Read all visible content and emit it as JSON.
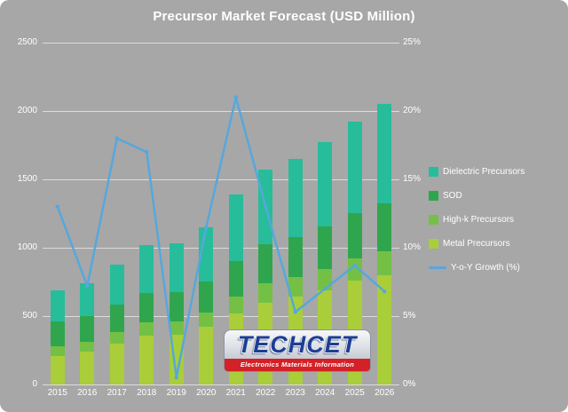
{
  "chart_data": {
    "type": "bar",
    "subtype": "stacked-column-with-line",
    "title": "Precursor Market Forecast (USD Million)",
    "categories": [
      "2015",
      "2016",
      "2017",
      "2018",
      "2019",
      "2020",
      "2021",
      "2022",
      "2023",
      "2024",
      "2025",
      "2026"
    ],
    "series": [
      {
        "name": "Metal Precursors",
        "color": "#a9ce39",
        "values": [
          210,
          240,
          300,
          360,
          365,
          420,
          520,
          600,
          640,
          690,
          760,
          800
        ]
      },
      {
        "name": "High-k Precursors",
        "color": "#74c044",
        "values": [
          70,
          75,
          85,
          95,
          95,
          105,
          125,
          140,
          145,
          155,
          165,
          175
        ]
      },
      {
        "name": "SOD",
        "color": "#2fa64e",
        "values": [
          180,
          185,
          200,
          215,
          215,
          230,
          260,
          285,
          295,
          310,
          330,
          350
        ]
      },
      {
        "name": "Dielectric Precursors",
        "color": "#27bd9b",
        "values": [
          230,
          240,
          295,
          350,
          355,
          395,
          485,
          545,
          570,
          615,
          665,
          725
        ]
      }
    ],
    "line": {
      "name": "Y-o-Y Growth (%)",
      "color": "#57a7dc",
      "values": [
        13,
        7.2,
        18,
        17,
        0.5,
        11.5,
        21,
        13,
        5.3,
        7,
        8.7,
        6.8
      ]
    },
    "left_axis": {
      "min": 0,
      "max": 2500,
      "ticks": [
        {
          "v": 0,
          "label": "0"
        },
        {
          "v": 500,
          "label": "500"
        },
        {
          "v": 1000,
          "label": "1000"
        },
        {
          "v": 1500,
          "label": "1500"
        },
        {
          "v": 2000,
          "label": "2000"
        },
        {
          "v": 2500,
          "label": "2500"
        }
      ]
    },
    "right_axis": {
      "min": 0,
      "max": 25,
      "ticks": [
        {
          "v": 0,
          "label": "0%"
        },
        {
          "v": 5,
          "label": "5%"
        },
        {
          "v": 10,
          "label": "10%"
        },
        {
          "v": 15,
          "label": "15%"
        },
        {
          "v": 20,
          "label": "20%"
        },
        {
          "v": 25,
          "label": "25%"
        }
      ]
    },
    "legend": [
      {
        "label": "Dielectric Precursors",
        "color": "#27bd9b",
        "type": "swatch"
      },
      {
        "label": "SOD",
        "color": "#2fa64e",
        "type": "swatch"
      },
      {
        "label": "High-k Precursors",
        "color": "#74c044",
        "type": "swatch"
      },
      {
        "label": "Metal Precursors",
        "color": "#a9ce39",
        "type": "swatch"
      },
      {
        "label": "Y-o-Y Growth (%)",
        "color": "#57a7dc",
        "type": "line"
      }
    ],
    "background": "#a7a7a7",
    "grid": true,
    "legend_position": "right"
  },
  "watermark": {
    "brand": "TECHCET",
    "tagline": "Electronics Materials Information"
  }
}
